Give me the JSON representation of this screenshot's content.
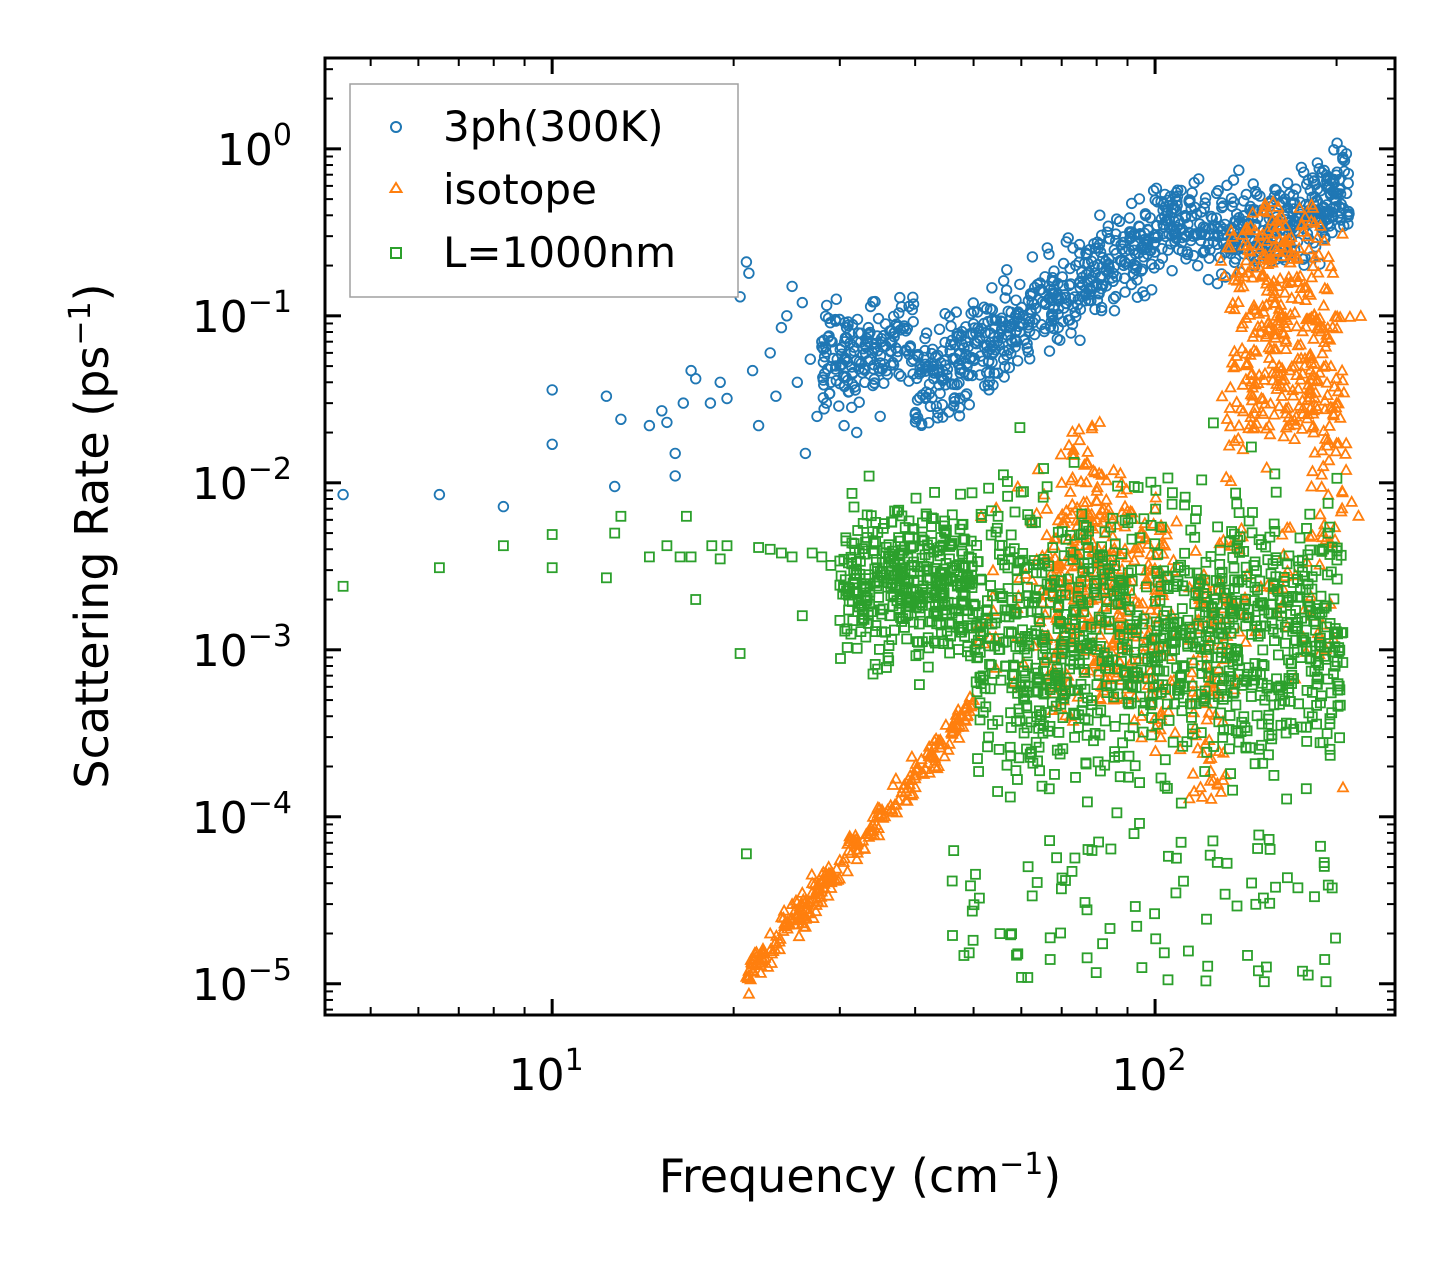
{
  "chart_data": {
    "type": "scatter",
    "xscale": "log",
    "yscale": "log",
    "xlabel": "Frequency (cm",
    "xlabel_unit_exp": "−1",
    "xlabel_close": ")",
    "ylabel": "Scattering Rate (ps",
    "ylabel_unit_exp": "−1",
    "ylabel_close": ")",
    "xlim": [
      4.2,
      250
    ],
    "ylim": [
      6.5e-06,
      3.5
    ],
    "xticks": [
      {
        "value": 10,
        "base": "10",
        "exp": "1"
      },
      {
        "value": 100,
        "base": "10",
        "exp": "2"
      }
    ],
    "yticks": [
      {
        "value": 1,
        "base": "10",
        "exp": "0"
      },
      {
        "value": 0.1,
        "base": "10",
        "exp": "−1"
      },
      {
        "value": 0.01,
        "base": "10",
        "exp": "−2"
      },
      {
        "value": 0.001,
        "base": "10",
        "exp": "−3"
      },
      {
        "value": 0.0001,
        "base": "10",
        "exp": "−4"
      },
      {
        "value": 1e-05,
        "base": "10",
        "exp": "−5"
      }
    ],
    "legend_position": "top-left",
    "series": [
      {
        "name": "3ph(300K)",
        "marker": "circle",
        "color": "#1f77b4",
        "points": [
          [
            4.5,
            0.0085
          ],
          [
            6.5,
            0.0085
          ],
          [
            8.3,
            0.0072
          ],
          [
            10,
            0.036
          ],
          [
            10,
            0.017
          ],
          [
            12.3,
            0.033
          ],
          [
            12.7,
            0.0095
          ],
          [
            13,
            0.024
          ],
          [
            14.5,
            0.022
          ],
          [
            15.2,
            0.027
          ],
          [
            15.5,
            0.023
          ],
          [
            16,
            0.015
          ],
          [
            16,
            0.011
          ],
          [
            16.5,
            0.03
          ],
          [
            17,
            0.047
          ],
          [
            17.3,
            0.042
          ],
          [
            18.3,
            0.03
          ],
          [
            19,
            0.04
          ],
          [
            19.5,
            0.032
          ],
          [
            20.5,
            0.13
          ],
          [
            21,
            0.21
          ],
          [
            21.2,
            0.18
          ],
          [
            21.5,
            0.047
          ],
          [
            22,
            0.022
          ],
          [
            23,
            0.06
          ],
          [
            23.5,
            0.033
          ],
          [
            24,
            0.085
          ],
          [
            24.5,
            0.1
          ],
          [
            25,
            0.15
          ],
          [
            25.5,
            0.04
          ],
          [
            26,
            0.12
          ],
          [
            26.3,
            0.015
          ],
          [
            26.8,
            0.055
          ],
          [
            27.5,
            0.025
          ],
          [
            28,
            0.07
          ],
          [
            28.5,
            0.03
          ],
          [
            29,
            0.04
          ],
          [
            29.5,
            0.095
          ],
          [
            30,
            0.05
          ],
          [
            30.5,
            0.022
          ],
          [
            31,
            0.035
          ],
          [
            32,
            0.02
          ],
          [
            33,
            0.04
          ],
          [
            34,
            0.06
          ],
          [
            35,
            0.025
          ]
        ]
      },
      {
        "name": "isotope",
        "marker": "triangle",
        "color": "#ff7f0e",
        "points": [
          [
            21,
            1.1e-05
          ],
          [
            21.5,
            1.2e-05
          ],
          [
            23,
            2e-05
          ],
          [
            24,
            2.5e-05
          ],
          [
            25,
            3e-05
          ],
          [
            26,
            3.5e-05
          ],
          [
            27,
            4e-05
          ],
          [
            28,
            4.5e-05
          ],
          [
            30,
            5.5e-05
          ],
          [
            32,
            7e-05
          ],
          [
            34,
            9e-05
          ],
          [
            36,
            0.00011
          ],
          [
            38,
            0.00014
          ],
          [
            40,
            0.00017
          ],
          [
            42,
            0.00021
          ],
          [
            44,
            0.00026
          ],
          [
            46,
            0.00032
          ],
          [
            48,
            0.0004
          ],
          [
            50,
            0.0005
          ],
          [
            70,
            0.01
          ],
          [
            75,
            0.018
          ],
          [
            80,
            0.006
          ],
          [
            88,
            0.01
          ],
          [
            100,
            0.007
          ],
          [
            140,
            0.15
          ],
          [
            160,
            0.35
          ],
          [
            180,
            0.25
          ],
          [
            200,
            0.03
          ],
          [
            205,
            0.00015
          ]
        ]
      },
      {
        "name": "L=1000nm",
        "marker": "square",
        "color": "#2ca02c",
        "points": [
          [
            4.5,
            0.0024
          ],
          [
            6.5,
            0.0031
          ],
          [
            8.3,
            0.0042
          ],
          [
            10,
            0.0049
          ],
          [
            10,
            0.0031
          ],
          [
            12.3,
            0.0027
          ],
          [
            12.7,
            0.005
          ],
          [
            13,
            0.0063
          ],
          [
            14.5,
            0.0036
          ],
          [
            15.5,
            0.0042
          ],
          [
            16.3,
            0.0036
          ],
          [
            16.7,
            0.0063
          ],
          [
            17,
            0.0036
          ],
          [
            17.3,
            0.002
          ],
          [
            18.4,
            0.0042
          ],
          [
            19,
            0.0035
          ],
          [
            19.5,
            0.0042
          ],
          [
            20.5,
            0.00095
          ],
          [
            21,
            6e-05
          ],
          [
            22,
            0.0041
          ],
          [
            23,
            0.004
          ],
          [
            24,
            0.0038
          ],
          [
            25,
            0.0036
          ],
          [
            26,
            0.0016
          ],
          [
            27,
            0.0038
          ],
          [
            28,
            0.0036
          ],
          [
            29,
            0.0032
          ],
          [
            30,
            0.0034
          ]
        ]
      }
    ],
    "note": "Each series is a dense cloud (thousands of points); listed points are representative anchors read from the figure."
  }
}
